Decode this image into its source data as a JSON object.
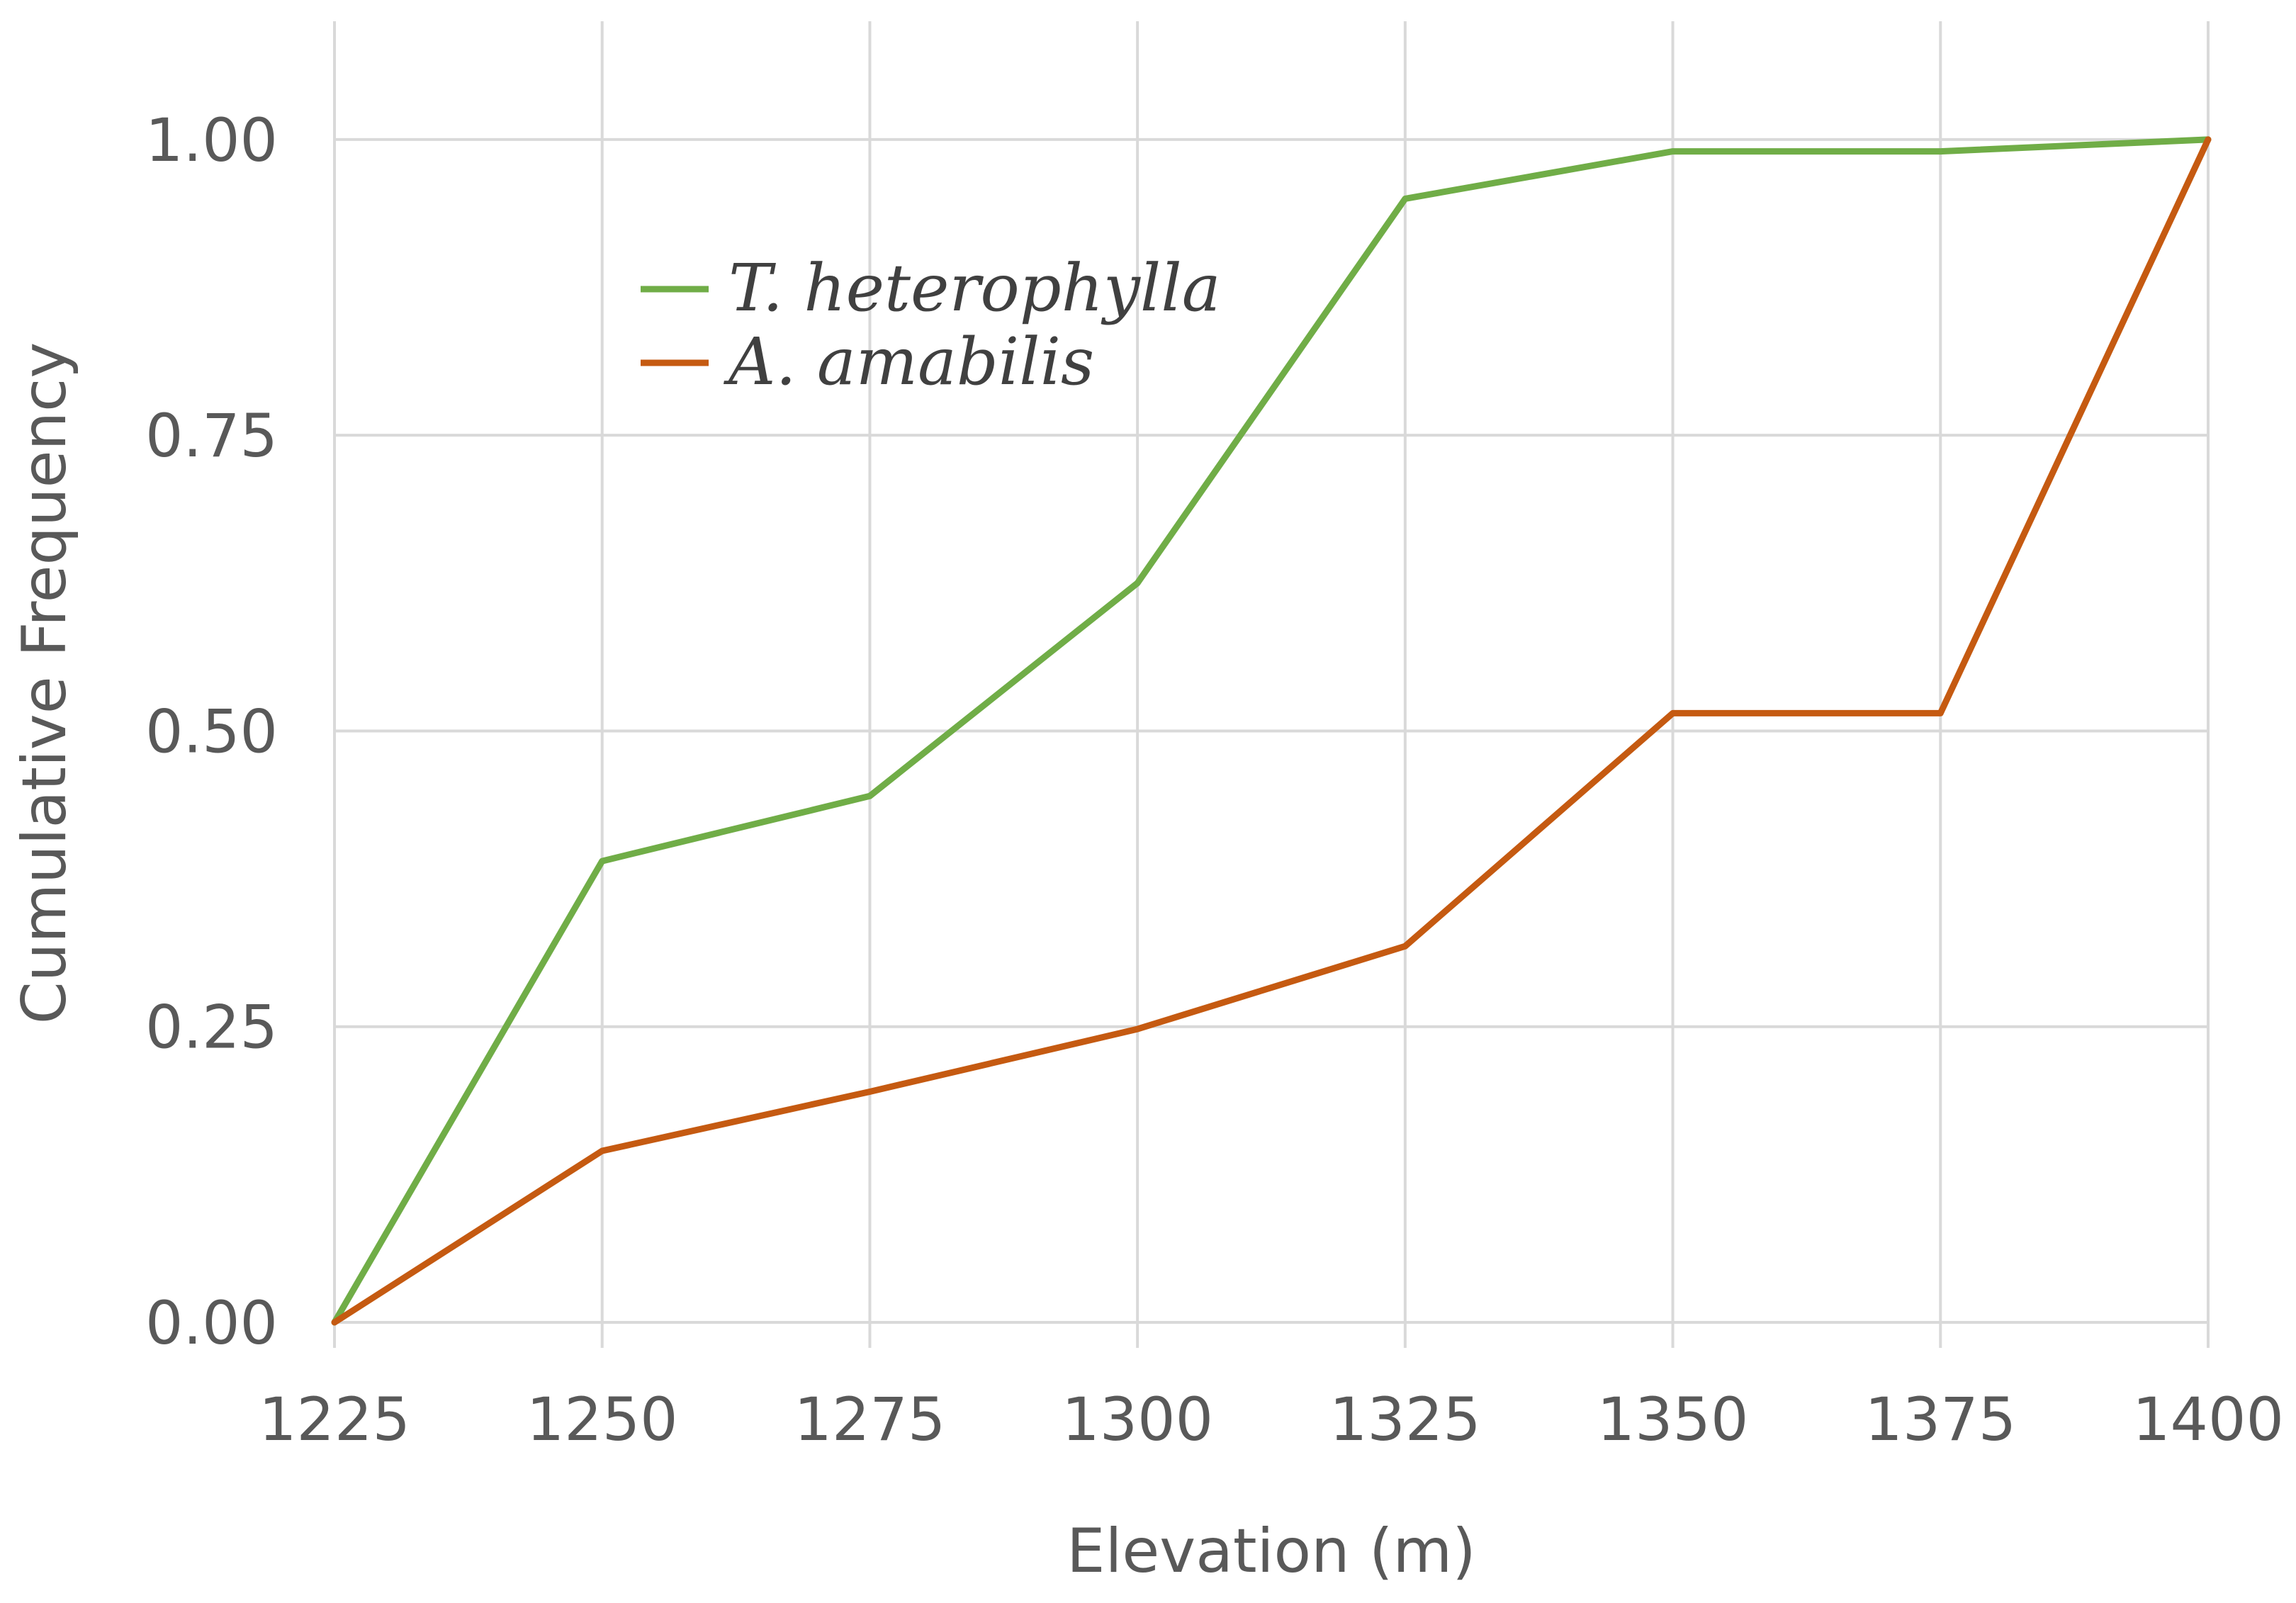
{
  "chart_data": {
    "type": "line",
    "title": "",
    "xlabel": "Elevation (m)",
    "ylabel": "Cumulative Frequency",
    "x": [
      1225,
      1250,
      1275,
      1300,
      1325,
      1350,
      1375,
      1400
    ],
    "x_tick_labels": [
      "1225",
      "1250",
      "1275",
      "1300",
      "1325",
      "1350",
      "1375",
      "1400"
    ],
    "y_ticks": [
      0,
      0.25,
      0.5,
      0.75,
      1.0
    ],
    "y_tick_labels": [
      "0.00",
      "0.25",
      "0.50",
      "0.75",
      "1.00"
    ],
    "xlim": [
      1225,
      1400
    ],
    "ylim": [
      0,
      1.1
    ],
    "grid": true,
    "legend_position": "top-left-inside",
    "series": [
      {
        "name": "T. heterophylla",
        "color": "#70AD47",
        "values": [
          0.0,
          0.39,
          0.445,
          0.625,
          0.95,
          0.99,
          0.99,
          1.0
        ]
      },
      {
        "name": "A. amabilis",
        "color": "#C55A11",
        "values": [
          0.0,
          0.145,
          0.195,
          0.248,
          0.318,
          0.515,
          0.515,
          1.0
        ]
      }
    ]
  }
}
